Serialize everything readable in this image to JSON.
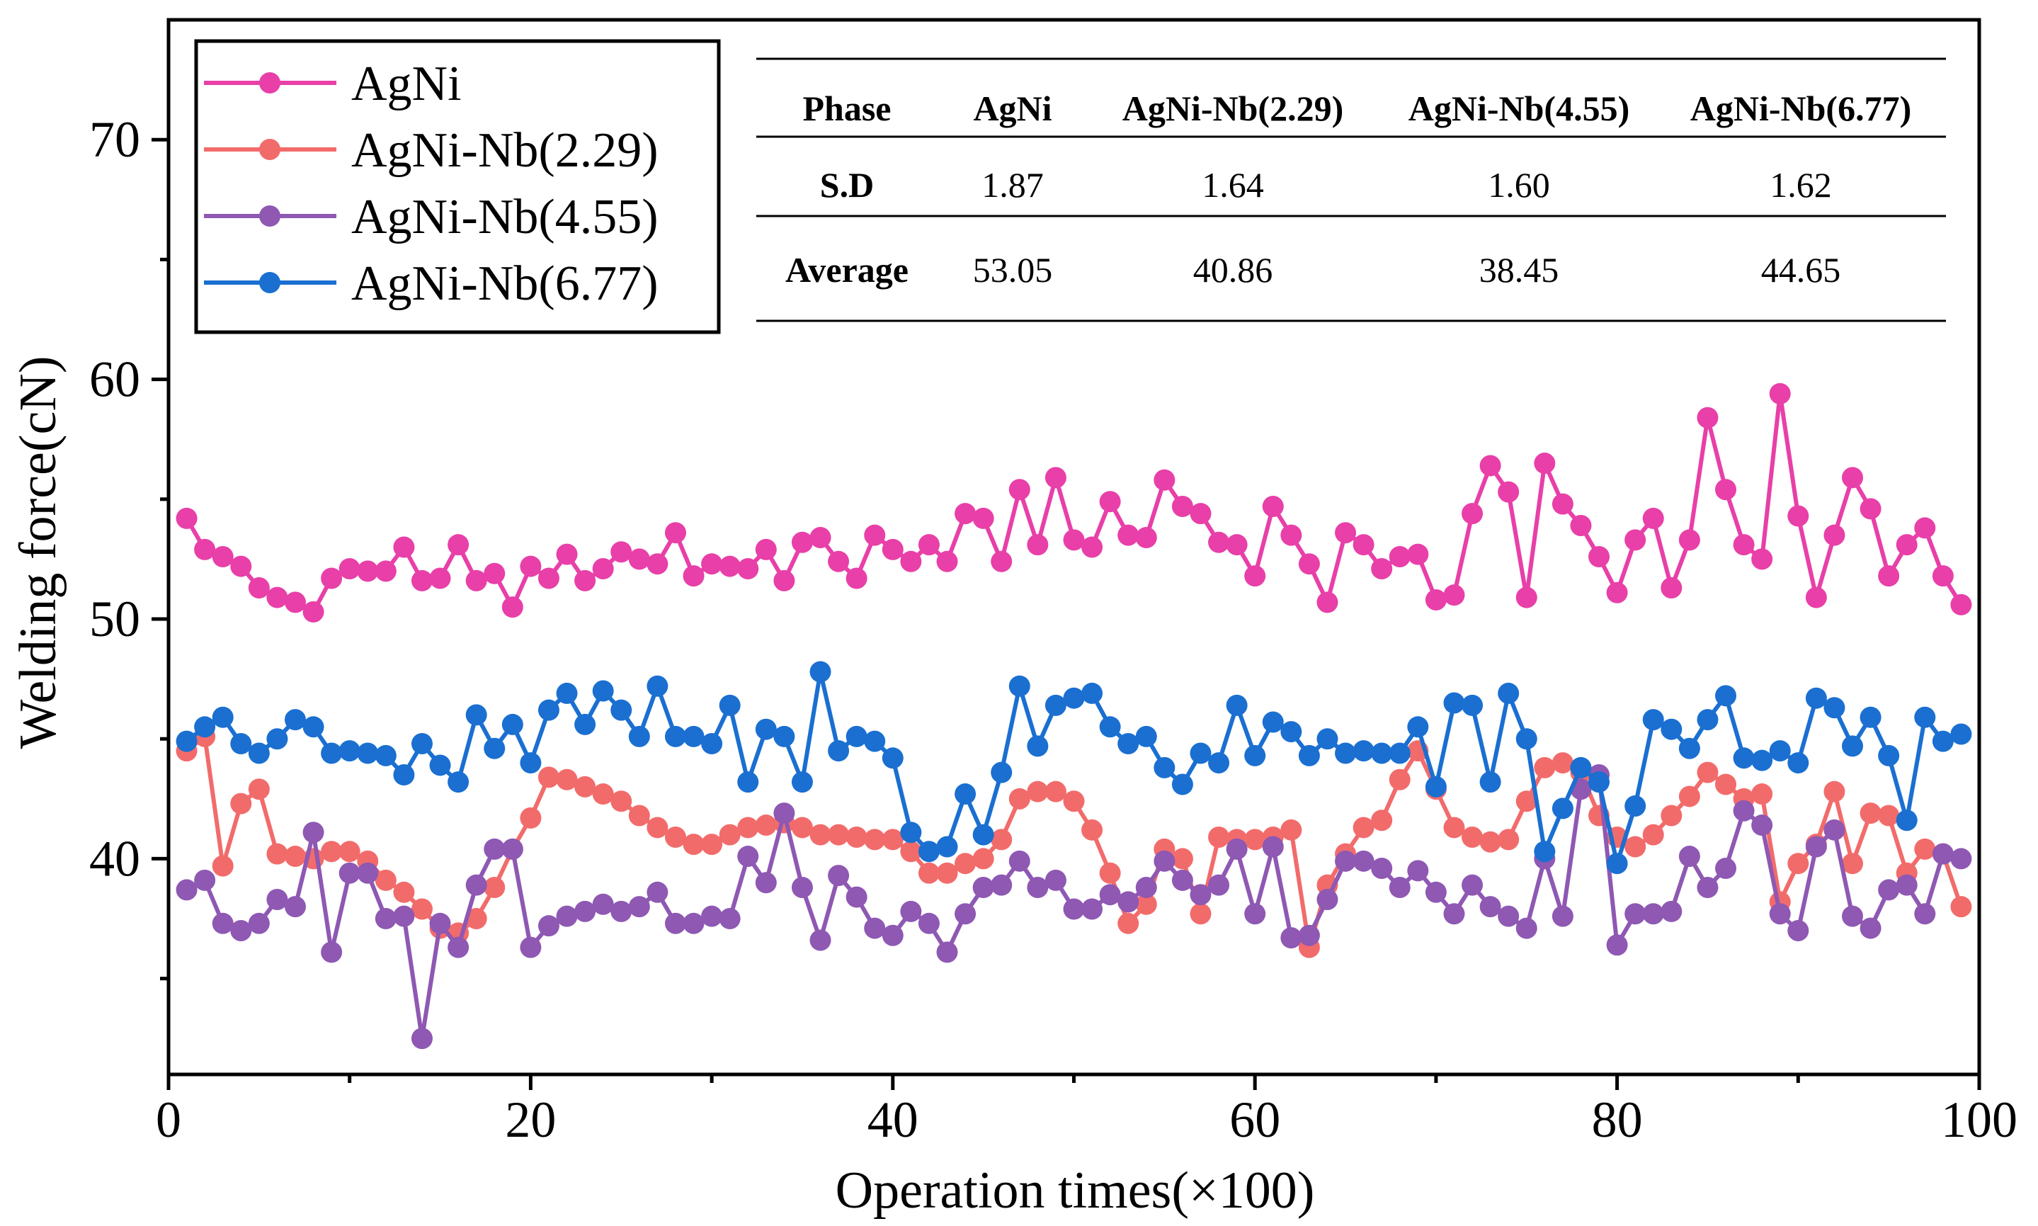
{
  "chart_data": {
    "type": "line",
    "xlabel": "Operation times(×100)",
    "ylabel": "Welding force(cN)",
    "xlim": [
      0,
      100
    ],
    "ylim": [
      31,
      75
    ],
    "xticks": [
      0,
      20,
      40,
      60,
      80,
      100
    ],
    "yticks": [
      40,
      50,
      60,
      70
    ],
    "x": [
      1,
      2,
      3,
      4,
      5,
      6,
      7,
      8,
      9,
      10,
      11,
      12,
      13,
      14,
      15,
      16,
      17,
      18,
      19,
      20,
      21,
      22,
      23,
      24,
      25,
      26,
      27,
      28,
      29,
      30,
      31,
      32,
      33,
      34,
      35,
      36,
      37,
      38,
      39,
      40,
      41,
      42,
      43,
      44,
      45,
      46,
      47,
      48,
      49,
      50,
      51,
      52,
      53,
      54,
      55,
      56,
      57,
      58,
      59,
      60,
      61,
      62,
      63,
      64,
      65,
      66,
      67,
      68,
      69,
      70,
      71,
      72,
      73,
      74,
      75,
      76,
      77,
      78,
      79,
      80,
      81,
      82,
      83,
      84,
      85,
      86,
      87,
      88,
      89,
      90,
      91,
      92,
      93,
      94,
      95,
      96,
      97,
      98,
      99
    ],
    "series": [
      {
        "name": "AgNi",
        "color": "#e83fa8",
        "values": [
          54.2,
          52.9,
          52.6,
          52.2,
          51.3,
          50.9,
          50.7,
          50.3,
          51.7,
          52.1,
          52.0,
          52.0,
          53.0,
          51.6,
          51.7,
          53.1,
          51.6,
          51.9,
          50.5,
          52.2,
          51.7,
          52.7,
          51.6,
          52.1,
          52.8,
          52.5,
          52.3,
          53.6,
          51.8,
          52.3,
          52.2,
          52.1,
          52.9,
          51.6,
          53.2,
          53.4,
          52.4,
          51.7,
          53.5,
          52.9,
          52.4,
          53.1,
          52.4,
          54.4,
          54.2,
          52.4,
          55.4,
          53.1,
          55.9,
          53.3,
          53.0,
          54.9,
          53.5,
          53.4,
          55.8,
          54.7,
          54.4,
          53.2,
          53.1,
          51.8,
          54.7,
          53.5,
          52.3,
          50.7,
          53.6,
          53.1,
          52.1,
          52.6,
          52.7,
          50.8,
          51.0,
          54.4,
          56.4,
          55.3,
          50.9,
          56.5,
          54.8,
          53.9,
          52.6,
          51.1,
          53.3,
          54.2,
          51.3,
          53.3,
          58.4,
          55.4,
          53.1,
          52.5,
          59.4,
          54.3,
          50.9,
          53.5,
          55.9,
          54.6,
          51.8,
          53.1,
          53.8,
          51.8,
          50.6
        ]
      },
      {
        "name": "AgNi-Nb(2.29)",
        "color": "#f26b6b",
        "values": [
          44.5,
          45.1,
          39.7,
          42.3,
          42.9,
          40.2,
          40.1,
          40.0,
          40.3,
          40.3,
          39.9,
          39.1,
          38.6,
          37.9,
          37.1,
          36.9,
          37.5,
          38.8,
          40.4,
          41.7,
          43.4,
          43.3,
          43.0,
          42.7,
          42.4,
          41.8,
          41.3,
          40.9,
          40.6,
          40.6,
          41.0,
          41.3,
          41.4,
          41.5,
          41.3,
          41.0,
          41.0,
          40.9,
          40.8,
          40.8,
          40.3,
          39.4,
          39.4,
          39.8,
          40.0,
          40.8,
          42.5,
          42.8,
          42.8,
          42.4,
          41.2,
          39.4,
          37.3,
          38.1,
          40.4,
          40.0,
          37.7,
          40.9,
          40.8,
          40.8,
          40.9,
          41.2,
          36.3,
          38.9,
          40.2,
          41.3,
          41.6,
          43.3,
          44.5,
          42.9,
          41.3,
          40.9,
          40.7,
          40.8,
          42.4,
          43.8,
          44.0,
          43.6,
          41.8,
          40.9,
          40.5,
          41.0,
          41.8,
          42.6,
          43.6,
          43.1,
          42.5,
          42.7,
          38.2,
          39.8,
          40.6,
          42.8,
          39.8,
          41.9,
          41.8,
          39.4,
          40.4,
          40.2,
          38.0
        ]
      },
      {
        "name": "AgNi-Nb(4.55)",
        "color": "#8e58b3",
        "values": [
          38.7,
          39.1,
          37.3,
          37.0,
          37.3,
          38.3,
          38.0,
          41.1,
          36.1,
          39.4,
          39.4,
          37.5,
          37.6,
          32.5,
          37.3,
          36.3,
          38.9,
          40.4,
          40.4,
          36.3,
          37.2,
          37.6,
          37.8,
          38.1,
          37.8,
          38.0,
          38.6,
          37.3,
          37.3,
          37.6,
          37.5,
          40.1,
          39.0,
          41.9,
          38.8,
          36.6,
          39.3,
          38.4,
          37.1,
          36.8,
          37.8,
          37.3,
          36.1,
          37.7,
          38.8,
          38.9,
          39.9,
          38.8,
          39.1,
          37.9,
          37.9,
          38.5,
          38.2,
          38.8,
          39.9,
          39.1,
          38.5,
          38.9,
          40.4,
          37.7,
          40.5,
          36.7,
          36.8,
          38.3,
          39.9,
          39.9,
          39.6,
          38.8,
          39.5,
          38.6,
          37.7,
          38.9,
          38.0,
          37.6,
          37.1,
          40.0,
          37.6,
          42.9,
          43.5,
          36.4,
          37.7,
          37.7,
          37.8,
          40.1,
          38.8,
          39.6,
          42.0,
          41.4,
          37.7,
          37.0,
          40.5,
          41.2,
          37.6,
          37.1,
          38.7,
          38.9,
          37.7,
          40.2,
          40.0
        ]
      },
      {
        "name": "AgNi-Nb(6.77)",
        "color": "#1a6fd1",
        "values": [
          44.9,
          45.5,
          45.9,
          44.8,
          44.4,
          45.0,
          45.8,
          45.5,
          44.4,
          44.5,
          44.4,
          44.3,
          43.5,
          44.8,
          43.9,
          43.2,
          46.0,
          44.6,
          45.6,
          44.0,
          46.2,
          46.9,
          45.6,
          47.0,
          46.2,
          45.1,
          47.2,
          45.1,
          45.1,
          44.8,
          46.4,
          43.2,
          45.4,
          45.1,
          43.2,
          47.8,
          44.5,
          45.1,
          44.9,
          44.2,
          41.1,
          40.3,
          40.5,
          42.7,
          41.0,
          43.6,
          47.2,
          44.7,
          46.4,
          46.7,
          46.9,
          45.5,
          44.8,
          45.1,
          43.8,
          43.1,
          44.4,
          44.0,
          46.4,
          44.3,
          45.7,
          45.3,
          44.3,
          45.0,
          44.4,
          44.5,
          44.4,
          44.4,
          45.5,
          43.0,
          46.5,
          46.4,
          43.2,
          46.9,
          45.0,
          40.3,
          42.1,
          43.8,
          43.2,
          39.8,
          42.2,
          45.8,
          45.4,
          44.6,
          45.8,
          46.8,
          44.2,
          44.1,
          44.5,
          44.0,
          46.7,
          46.3,
          44.7,
          45.9,
          44.3,
          41.6,
          45.9,
          44.9,
          45.2
        ]
      }
    ]
  },
  "legend": {
    "items": [
      {
        "label": "AgNi",
        "color": "#e83fa8"
      },
      {
        "label": "AgNi-Nb(2.29)",
        "color": "#f26b6b"
      },
      {
        "label": "AgNi-Nb(4.55)",
        "color": "#8e58b3"
      },
      {
        "label": "AgNi-Nb(6.77)",
        "color": "#1a6fd1"
      }
    ]
  },
  "table": {
    "headers": [
      "Phase",
      "AgNi",
      "AgNi-Nb(2.29)",
      "AgNi-Nb(4.55)",
      "AgNi-Nb(6.77)"
    ],
    "rows": [
      [
        "S.D",
        "1.87",
        "1.64",
        "1.60",
        "1.62"
      ],
      [
        "Average",
        "53.05",
        "40.86",
        "38.45",
        "44.65"
      ]
    ]
  }
}
